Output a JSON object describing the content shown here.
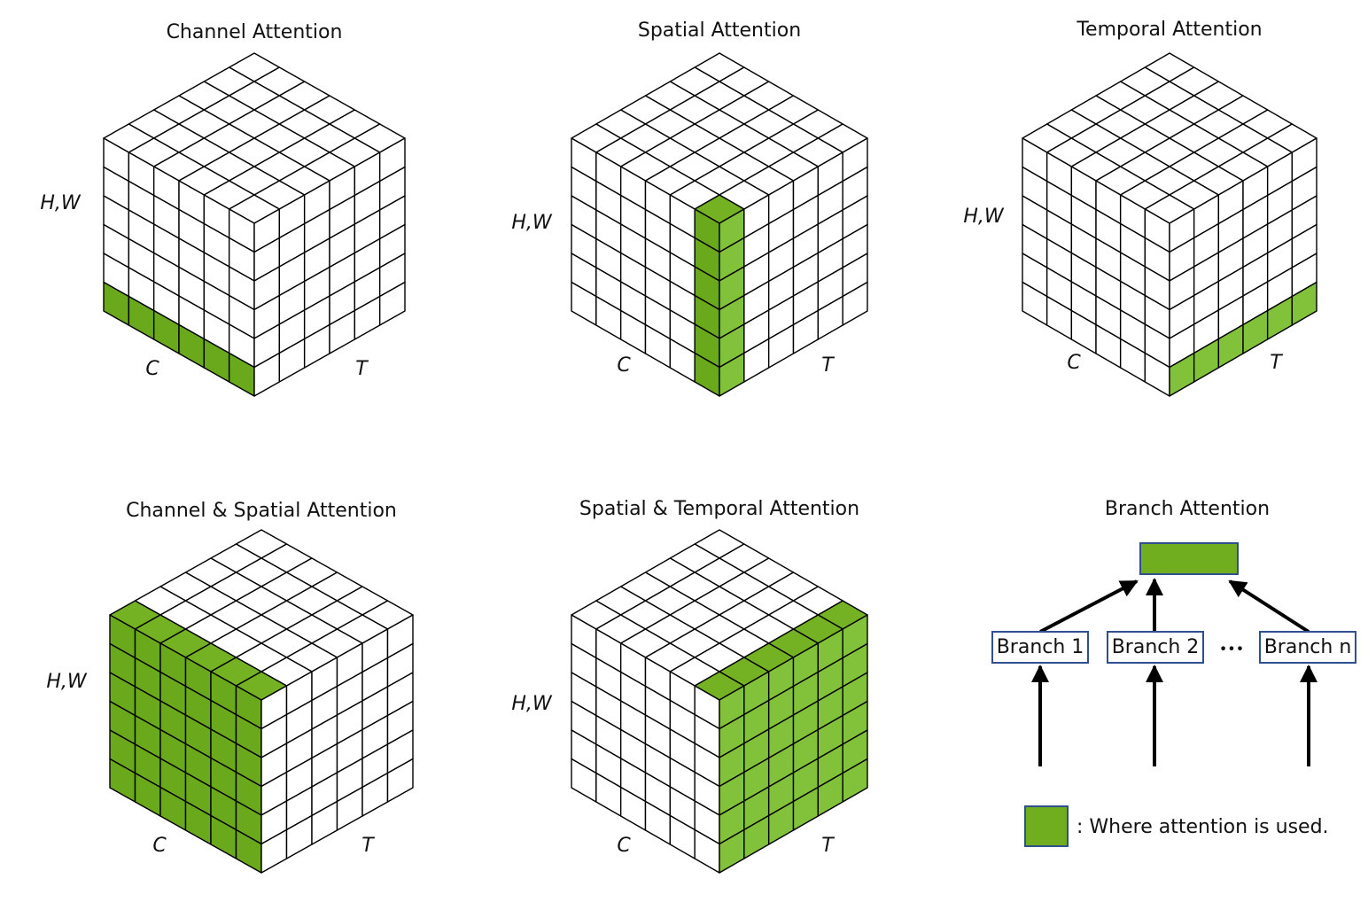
{
  "panels": [
    {
      "title": "Channel Attention",
      "h_label": "H,W",
      "c_label": "C",
      "t_label": "T"
    },
    {
      "title": "Spatial Attention",
      "h_label": "H,W",
      "c_label": "C",
      "t_label": "T"
    },
    {
      "title": "Temporal Attention",
      "h_label": "H,W",
      "c_label": "C",
      "t_label": "T"
    },
    {
      "title": "Channel & Spatial Attention",
      "h_label": "H,W",
      "c_label": "C",
      "t_label": "T"
    },
    {
      "title": "Spatial & Temporal Attention",
      "h_label": "H,W",
      "c_label": "C",
      "t_label": "T"
    }
  ],
  "branch": {
    "title": "Branch Attention",
    "branches": [
      "Branch 1",
      "Branch 2",
      "Branch n"
    ],
    "ellipsis": "•••"
  },
  "legend": {
    "text": ": Where attention is used."
  }
}
